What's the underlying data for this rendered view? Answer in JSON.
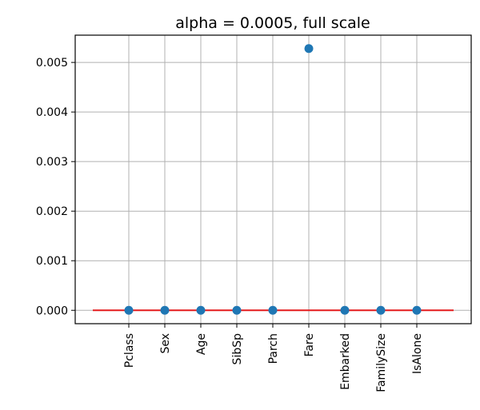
{
  "chart_data": {
    "type": "scatter",
    "title": "alpha = 0.0005, full scale",
    "xlabel": "",
    "ylabel": "",
    "categories": [
      "Pclass",
      "Sex",
      "Age",
      "SibSp",
      "Parch",
      "Fare",
      "Embarked",
      "FamilySize",
      "IsAlone"
    ],
    "values": [
      0.0,
      0.0,
      0.0,
      0.0,
      0.0,
      0.00528,
      0.0,
      0.0,
      0.0
    ],
    "ylim": [
      -0.00027,
      0.00555
    ],
    "yticks": [
      0.0,
      0.001,
      0.002,
      0.003,
      0.004,
      0.005
    ],
    "ytick_labels": [
      "0.000",
      "0.001",
      "0.002",
      "0.003",
      "0.004",
      "0.005"
    ],
    "reference_line": {
      "y": 0.0,
      "color": "#e41a1c"
    },
    "grid": true,
    "marker_color": "#1f77b4"
  }
}
